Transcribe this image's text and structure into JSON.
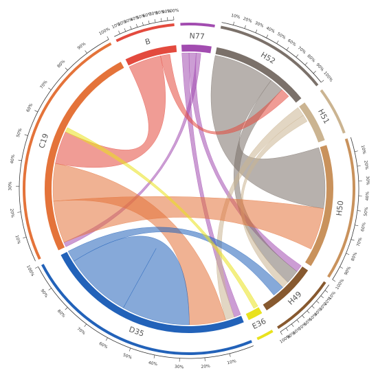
{
  "chart_data": {
    "type": "chord",
    "segments": [
      {
        "name": "N77",
        "value": 12,
        "color": "#a24cb0"
      },
      {
        "name": "H52",
        "value": 40,
        "color": "#7b716a"
      },
      {
        "name": "H51",
        "value": 17,
        "color": "#cbb491"
      },
      {
        "name": "H50",
        "value": 50,
        "color": "#c9925c"
      },
      {
        "name": "H49",
        "value": 23,
        "color": "#87592f"
      },
      {
        "name": "E36",
        "value": 6,
        "color": "#e9e21e"
      },
      {
        "name": "D35",
        "value": 85,
        "color": "#2262b9"
      },
      {
        "name": "C19",
        "value": 87,
        "color": "#e4733a"
      },
      {
        "name": "B",
        "value": 21,
        "color": "#e34a3e"
      }
    ],
    "chords": [
      {
        "from": "N77",
        "to": "D35",
        "value": 3
      },
      {
        "from": "N77",
        "to": "H49",
        "value": 3
      },
      {
        "from": "N77",
        "to": "C19",
        "value": 2
      },
      {
        "from": "H52",
        "to": "H50",
        "value": 26
      },
      {
        "from": "H52",
        "to": "H49",
        "value": 6
      },
      {
        "from": "H51",
        "to": "D35",
        "value": 4
      },
      {
        "from": "H51",
        "to": "H49",
        "value": 3
      },
      {
        "from": "C19",
        "to": "H50",
        "value": 18
      },
      {
        "from": "C19",
        "to": "D35",
        "value": 16
      },
      {
        "from": "B",
        "to": "C19",
        "value": 14
      },
      {
        "from": "B",
        "to": "H52",
        "value": 4
      },
      {
        "from": "D35",
        "to": "D35",
        "value": 30
      },
      {
        "from": "D35",
        "to": "H49",
        "value": 5
      },
      {
        "from": "E36",
        "to": "C19",
        "value": 2
      }
    ],
    "percent_ticks": [
      {
        "value": 10,
        "label": "10%"
      },
      {
        "value": 20,
        "label": "20%"
      },
      {
        "value": 30,
        "label": "30%"
      },
      {
        "value": 40,
        "label": "40%"
      },
      {
        "value": 50,
        "label": "50%"
      },
      {
        "value": 60,
        "label": "60%"
      },
      {
        "value": 70,
        "label": "70%"
      },
      {
        "value": 80,
        "label": "80%"
      },
      {
        "value": 90,
        "label": "90%"
      },
      {
        "value": 100,
        "label": "100%"
      }
    ]
  }
}
